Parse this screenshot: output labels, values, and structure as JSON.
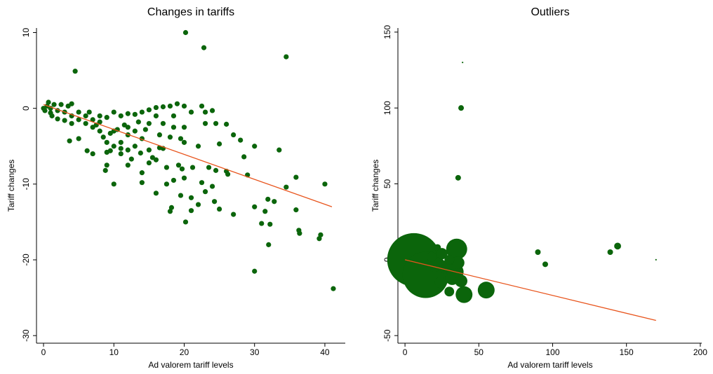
{
  "chart_data": [
    {
      "type": "scatter",
      "title": "Changes in tariffs",
      "x_label": "Ad valorem tariff levels",
      "y_label": "Tariff changes",
      "xlim": [
        -1,
        42.9
      ],
      "ylim": [
        -31,
        10.6
      ],
      "xticks": [
        0,
        10,
        20,
        30,
        40
      ],
      "yticks": [
        -30,
        -20,
        -10,
        0,
        10
      ],
      "series": [
        {
          "color": "#0b650b",
          "x": [
            4.5,
            20.2,
            22.8,
            34.5,
            41.2,
            30,
            20.2,
            32,
            36.3,
            36.4,
            39.2,
            39.4,
            40,
            35.9,
            35.9,
            34.5,
            33.5,
            32.8,
            31.5,
            31,
            32.2,
            31.9,
            30,
            30,
            29,
            27,
            25,
            26.2,
            27,
            28,
            28.5,
            25,
            24.5,
            22,
            21,
            18,
            18.2,
            16,
            19.5,
            21,
            23,
            22.5,
            23.5,
            26,
            24,
            24.3,
            20,
            19.2,
            19.7,
            18.5,
            17.5,
            21.2,
            17,
            15.5,
            14,
            13.8,
            12,
            10,
            9,
            8.8,
            9.5,
            6.2,
            7,
            5,
            3.7,
            8,
            10,
            11,
            12,
            13,
            14,
            15,
            16,
            17,
            18,
            19,
            20,
            21,
            22.5,
            23,
            24,
            20,
            19.5,
            20,
            22,
            23,
            24.5,
            18.5,
            16.5,
            15,
            13,
            12,
            11,
            10,
            9,
            8,
            7,
            6,
            5,
            4,
            3,
            2,
            1,
            0.5,
            0.7,
            1.5,
            2.5,
            3.5,
            4,
            0,
            0.2,
            1,
            1.2,
            2,
            3,
            4,
            5,
            6,
            6.5,
            7,
            8,
            9,
            10,
            11,
            12,
            13,
            14,
            15,
            16,
            11.5,
            13.5,
            14.5,
            8.5,
            9.5,
            10.5,
            7.5,
            17,
            18,
            16,
            15,
            12.5,
            11,
            14,
            16.5,
            18.5,
            26,
            17.5,
            12,
            9
          ],
          "values": [
            4.9,
            10,
            8,
            6.8,
            -23.8,
            -21.5,
            -15,
            -18,
            -16.1,
            -16.5,
            -17.2,
            -16.7,
            -10,
            -13.4,
            -9.1,
            -10.4,
            -5.5,
            -12.3,
            -13.6,
            -15.2,
            -15.3,
            -12,
            -13,
            -5,
            -8.8,
            -14,
            -13.3,
            -8.7,
            -3.5,
            -4.2,
            -6.4,
            -4.7,
            -8.2,
            -12.7,
            -13.5,
            -13.6,
            -13.1,
            -11.2,
            -11.5,
            -11.8,
            -11,
            -9.8,
            -7.8,
            -8.3,
            -10.3,
            -12.3,
            -9.2,
            -7.5,
            -8,
            -9.5,
            -7.8,
            -7.8,
            -5.3,
            -6.5,
            -8.5,
            -5.9,
            -7.5,
            -10,
            -7.5,
            -8.2,
            -5.6,
            -5.6,
            -6,
            -4,
            -4.3,
            -1,
            -3,
            -4.5,
            -2.5,
            -3,
            -4,
            -2,
            -1,
            0.2,
            0.3,
            0.6,
            0.3,
            -0.5,
            0.3,
            -0.5,
            -0.3,
            -2.5,
            -4,
            -4.5,
            -5,
            -2,
            -2,
            -2.5,
            -3.5,
            -5.5,
            -5,
            -5.5,
            -6,
            -5,
            -4.5,
            -3,
            -2.5,
            -2,
            -1.5,
            -1,
            -0.5,
            -0.3,
            0,
            0.3,
            0.8,
            0.5,
            0.5,
            0.3,
            0.6,
            0,
            -0.3,
            -0.6,
            -1,
            -1.4,
            -1.6,
            -2,
            -0.5,
            -1,
            -0.5,
            -1.5,
            -1.8,
            -1.2,
            -0.5,
            -1,
            -0.7,
            -0.8,
            -0.5,
            -0.2,
            0.1,
            -2.2,
            -1.8,
            -2.8,
            -3.8,
            -3.3,
            -2.8,
            -2.2,
            -2,
            -3.8,
            -6.8,
            -7.2,
            -6.7,
            -5.3,
            -9.8,
            -5.2,
            -1,
            -2.1,
            -10,
            -3.5,
            -5.8
          ]
        }
      ],
      "fit": {
        "color": "#e8541c",
        "x": [
          0,
          41
        ],
        "values": [
          0.5,
          -13
        ]
      }
    },
    {
      "type": "bubble",
      "title": "Outliers",
      "x_label": "Ad valorem tariff levels",
      "y_label": "Tariff changes",
      "xlim": [
        -4.8,
        201
      ],
      "ylim": [
        -55,
        152.7
      ],
      "xticks": [
        0,
        50,
        100,
        150,
        200
      ],
      "yticks": [
        -50,
        0,
        50,
        100,
        150
      ],
      "series": [
        {
          "color": "#0b650b",
          "x": [
            6,
            14,
            35,
            40,
            55,
            30,
            38,
            36,
            39,
            90,
            95,
            139,
            144,
            170,
            22,
            25,
            28,
            32,
            20,
            34,
            36,
            18,
            24,
            30,
            38
          ],
          "values": [
            0,
            -10,
            7,
            -23,
            -20,
            -21,
            100,
            54,
            130,
            5,
            -3,
            5,
            9,
            0,
            8,
            4,
            -5,
            -12,
            -3,
            -8,
            -2,
            2,
            -15,
            0,
            -14
          ],
          "sizes": [
            361,
            272,
            56,
            36,
            36,
            12,
            4,
            4,
            0.3,
            4,
            4,
            4,
            6,
            0.3,
            6,
            16,
            25,
            25,
            30,
            36,
            20,
            12,
            16,
            12,
            20
          ]
        }
      ],
      "fit": {
        "color": "#e8541c",
        "x": [
          0,
          170
        ],
        "values": [
          0,
          -40
        ]
      }
    }
  ]
}
